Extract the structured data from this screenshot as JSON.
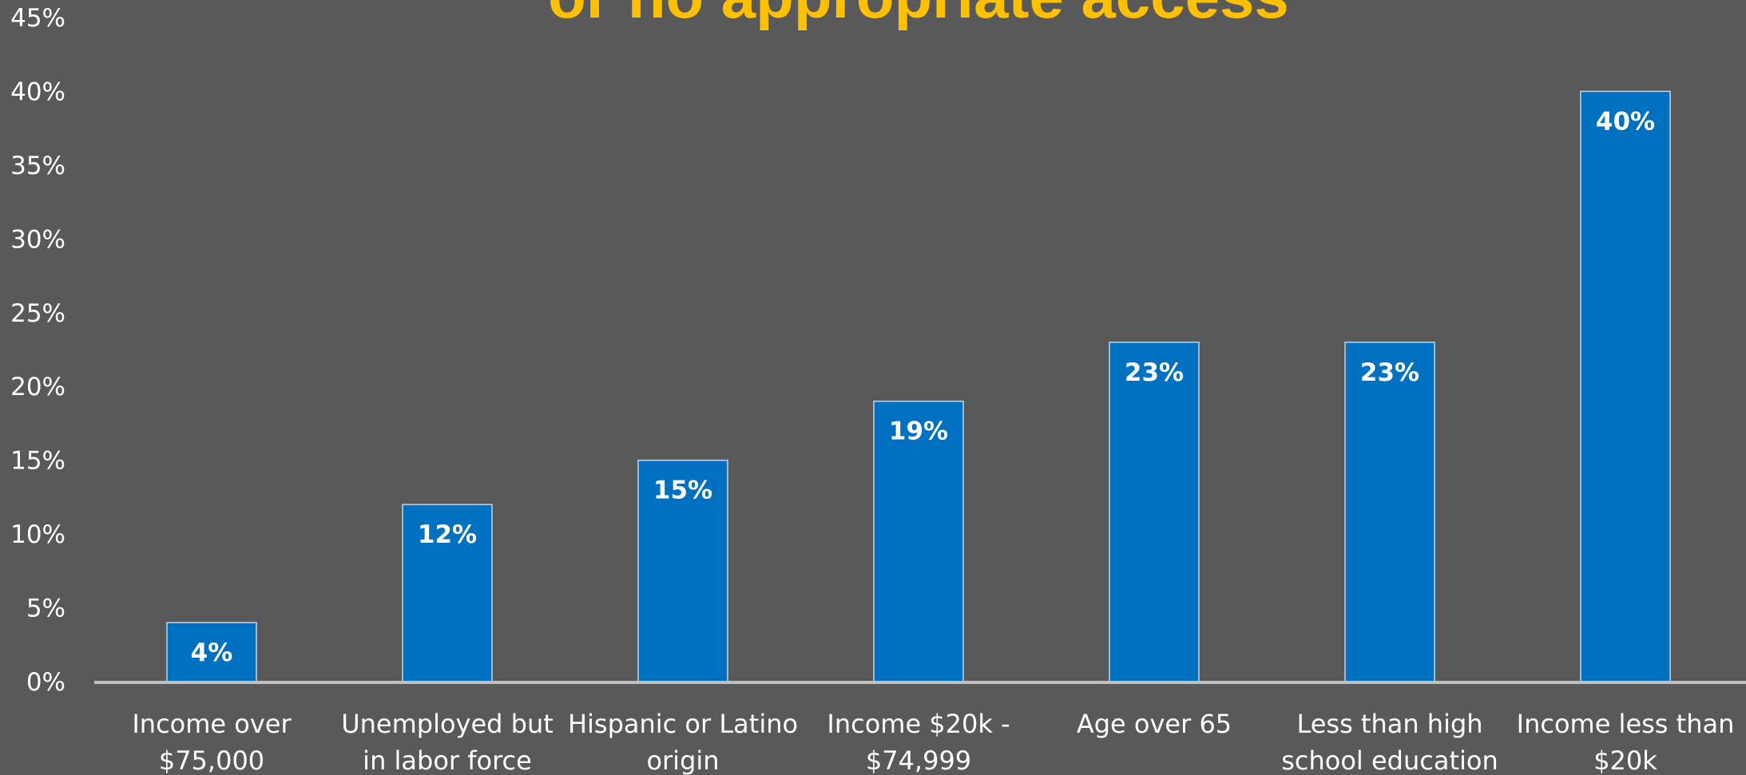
{
  "chart_data": {
    "type": "bar",
    "title": "or no appropriate access",
    "categories": [
      [
        "Income over",
        "$75,000"
      ],
      [
        "Unemployed but",
        "in labor force"
      ],
      [
        "Hispanic or Latino",
        "origin"
      ],
      [
        "Income $20k -",
        "$74,999"
      ],
      [
        "Age over 65"
      ],
      [
        "Less than high",
        "school education"
      ],
      [
        "Income less than",
        "$20k"
      ]
    ],
    "values": [
      4,
      12,
      15,
      19,
      23,
      23,
      40
    ],
    "data_labels": [
      "4%",
      "12%",
      "15%",
      "19%",
      "23%",
      "23%",
      "40%"
    ],
    "y_ticks": [
      "0%",
      "5%",
      "10%",
      "15%",
      "20%",
      "25%",
      "30%",
      "35%",
      "40%",
      "45%"
    ],
    "ylim": [
      0,
      45
    ],
    "grid": false,
    "legend": "none",
    "xlabel": "",
    "ylabel": "",
    "colors": {
      "bar": "#0070C0",
      "bar_border": "#BFD7EE",
      "background": "#595959",
      "axis_line": "#BFBFBF",
      "title": "#FFC000",
      "text": "#FFFFFF"
    }
  }
}
